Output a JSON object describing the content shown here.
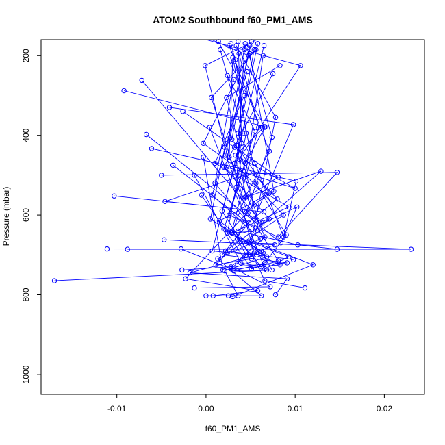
{
  "chart_data": {
    "type": "line",
    "title": "ATOM2 Southbound f60_PM1_AMS",
    "xlabel": "f60_PM1_AMS",
    "ylabel": "Pressure (mbar)",
    "xlim": [
      -0.0185,
      0.0245
    ],
    "ylim": [
      1050,
      160
    ],
    "y_reversed": true,
    "grid": false,
    "x_ticks": [
      -0.01,
      0.0,
      0.01,
      0.02
    ],
    "x_tick_labels": [
      "-0.01",
      "0.00",
      "0.01",
      "0.02"
    ],
    "y_ticks": [
      200,
      400,
      600,
      800,
      1000
    ],
    "y_tick_labels": [
      "200",
      "400",
      "600",
      "800",
      "1000"
    ],
    "series_color": "#0000ff",
    "series": [
      {
        "x": [
          0.0078,
          0.0091,
          -0.0018,
          0.0064,
          0.0005,
          0.0021,
          -0.0001,
          0.0057
        ],
        "y": [
          800,
          760,
          745,
          695,
          610,
          430,
          225,
          160
        ]
      },
      {
        "x": [
          -0.017,
          0.0074,
          0.0062,
          0.0029,
          0.0093,
          0.001,
          0.0043,
          0.0028
        ],
        "y": [
          765,
          738,
          690,
          645,
          580,
          470,
          300,
          170
        ]
      },
      {
        "x": [
          -0.0111,
          0.023,
          0.0048,
          0.0015,
          0.0071,
          0.0029,
          0.0049
        ],
        "y": [
          685,
          686,
          670,
          615,
          545,
          410,
          175
        ]
      },
      {
        "x": [
          -0.0088,
          0.0147,
          0.0103,
          0.0036,
          0.008,
          0.0037,
          0.0106,
          0.0
        ],
        "y": [
          686,
          686,
          675,
          640,
          560,
          460,
          225,
          160
        ]
      },
      {
        "x": [
          -0.0103,
          0.0065,
          -0.0046,
          0.0045,
          -0.0003,
          0.0048,
          0.0006
        ],
        "y": [
          552,
          592,
          566,
          498,
          420,
          200,
          160
        ]
      },
      {
        "x": [
          -0.005,
          0.0147,
          0.0081,
          0.0026,
          0.0044,
          0.0066,
          0.0014
        ],
        "y": [
          500,
          493,
          655,
          600,
          470,
          380,
          165
        ]
      },
      {
        "x": [
          -0.0047,
          0.0077,
          0.0049,
          0.0018,
          0.004,
          0.0036
        ],
        "y": [
          662,
          675,
          700,
          590,
          420,
          165
        ]
      },
      {
        "x": [
          0.0,
          0.0062,
          0.0013,
          0.0061,
          0.0007,
          0.0046
        ],
        "y": [
          803,
          803,
          710,
          660,
          550,
          240
        ]
      },
      {
        "x": [
          0.0036,
          0.0021,
          0.0068,
          0.002,
          0.0055,
          0.0024
        ],
        "y": [
          803,
          740,
          705,
          635,
          390,
          250
        ]
      },
      {
        "x": [
          0.0025,
          0.003,
          0.012,
          0.0051,
          0.0078,
          0.0034
        ],
        "y": [
          803,
          805,
          725,
          665,
          355,
          175
        ]
      },
      {
        "x": [
          0.0008,
          0.0058,
          -0.0023,
          0.0054,
          0.0023,
          0.0083
        ],
        "y": [
          803,
          790,
          760,
          575,
          305,
          225
        ]
      },
      {
        "x": [
          -0.0027,
          0.0091,
          0.0018,
          0.0048,
          0.001,
          0.0031
        ],
        "y": [
          738,
          720,
          700,
          620,
          520,
          260
        ]
      },
      {
        "x": [
          -0.0013,
          0.0072,
          0.0028,
          0.0066,
          0.0026,
          0.003
        ],
        "y": [
          783,
          780,
          730,
          655,
          455,
          205
        ]
      },
      {
        "x": [
          0.0111,
          0.0066,
          0.0052,
          0.0007,
          0.0041,
          0.0016
        ],
        "y": [
          783,
          765,
          700,
          690,
          395,
          185
        ]
      },
      {
        "x": [
          0.0068,
          0.0031,
          0.0066,
          0.009,
          0.0056,
          0.0031
        ],
        "y": [
          738,
          740,
          720,
          650,
          520,
          215
        ]
      },
      {
        "x": [
          0.0051,
          0.0011,
          0.0024,
          0.0087,
          0.0032,
          0.0065
        ],
        "y": [
          710,
          725,
          695,
          600,
          470,
          175
        ]
      },
      {
        "x": [
          0.0098,
          0.0057,
          0.0022,
          0.0071,
          0.002,
          0.0075
        ],
        "y": [
          712,
          700,
          690,
          610,
          480,
          245
        ]
      },
      {
        "x": [
          -0.0092,
          0.0066,
          0.0033,
          0.01,
          0.0023,
          0.0027,
          0.0051
        ],
        "y": [
          288,
          378,
          450,
          533,
          480,
          405,
          165
        ]
      },
      {
        "x": [
          -0.0072,
          0.0063,
          0.0129,
          0.0045,
          0.0034,
          0.0058
        ],
        "y": [
          262,
          620,
          490,
          555,
          425,
          170
        ]
      },
      {
        "x": [
          -0.0067,
          0.0084,
          0.0102,
          0.006,
          0.0044,
          0.0064
        ],
        "y": [
          398,
          670,
          580,
          625,
          505,
          200
        ]
      },
      {
        "x": [
          -0.0061,
          0.0101,
          0.0087,
          0.0055,
          0.0036,
          0.0054
        ],
        "y": [
          433,
          515,
          655,
          470,
          395,
          185
        ]
      },
      {
        "x": [
          -0.0041,
          0.0098,
          0.0054,
          0.0043,
          0.0076,
          0.0049
        ],
        "y": [
          330,
          373,
          610,
          590,
          540,
          195
        ]
      },
      {
        "x": [
          -0.0037,
          0.0058,
          0.0029,
          0.0044,
          0.0071,
          0.0026
        ],
        "y": [
          475,
          640,
          645,
          555,
          440,
          175
        ]
      },
      {
        "x": [
          -0.0026,
          0.0032,
          0.0081,
          0.0042,
          0.0006,
          0.0056
        ],
        "y": [
          340,
          430,
          505,
          560,
          305,
          185
        ]
      },
      {
        "x": [
          -0.0028,
          0.0028,
          0.0045,
          0.0035,
          0.0074,
          0.0046
        ],
        "y": [
          685,
          735,
          700,
          660,
          405,
          180
        ]
      },
      {
        "x": [
          -0.0013,
          0.0039,
          0.0062,
          0.0029,
          0.0059,
          0.0037
        ],
        "y": [
          500,
          720,
          730,
          640,
          380,
          195
        ]
      },
      {
        "x": [
          -0.0005,
          0.0051,
          0.0081,
          0.0047,
          0.0022,
          0.0044
        ],
        "y": [
          550,
          735,
          715,
          595,
          450,
          170
        ]
      },
      {
        "x": [
          0.0004,
          0.0066,
          0.0093,
          0.0024,
          0.0045,
          0.0033
        ],
        "y": [
          380,
          735,
          705,
          645,
          395,
          210
        ]
      },
      {
        "x": [
          -0.0003,
          0.0019,
          0.0083,
          0.0054,
          0.0034,
          0.0043
        ],
        "y": [
          455,
          738,
          725,
          695,
          530,
          185
        ]
      }
    ]
  }
}
